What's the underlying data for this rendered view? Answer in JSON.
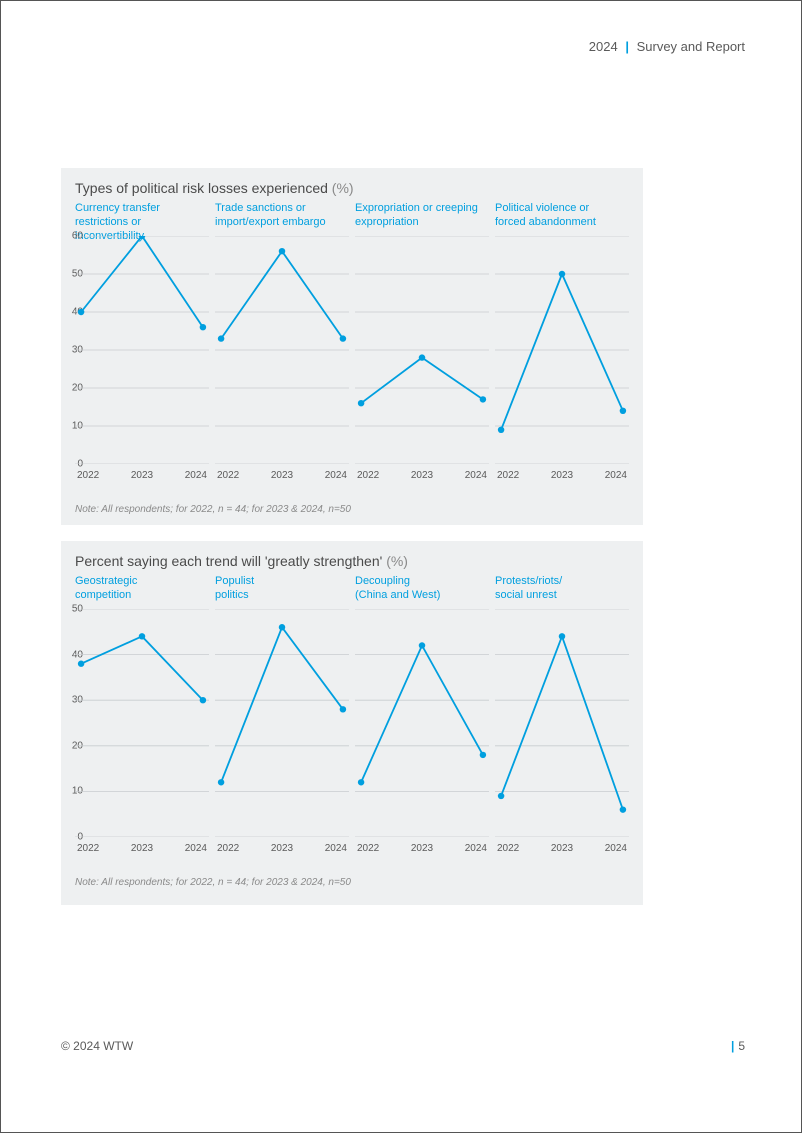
{
  "header": {
    "year": "2024",
    "divider": "|",
    "title": "Survey and Report"
  },
  "accent_color": "#009fdf",
  "grid_color": "#c8cccf",
  "panel_bg": "#eef0f1",
  "text_color": "#5a5a5a",
  "marker_radius": 3.2,
  "line_width": 1.8,
  "chart1": {
    "title_main": "Types of political risk losses experienced ",
    "title_suffix": "(%)",
    "note": "Note: All respondents; for 2022, n = 44; for 2023 & 2024, n=50",
    "categories": [
      "2022",
      "2023",
      "2024"
    ],
    "ylim": [
      0,
      60
    ],
    "ytick_step": 10,
    "panels": [
      {
        "label_l1": "Currency transfer",
        "label_l2": "restrictions or inconvertibility",
        "values": [
          40,
          60,
          36
        ]
      },
      {
        "label_l1": "Trade sanctions or",
        "label_l2": "import/export embargo",
        "values": [
          33,
          56,
          33
        ]
      },
      {
        "label_l1": "Expropriation or creeping",
        "label_l2": "expropriation",
        "values": [
          16,
          28,
          17
        ]
      },
      {
        "label_l1": "Political violence or",
        "label_l2": "forced abandonment",
        "values": [
          9,
          50,
          14
        ]
      }
    ]
  },
  "chart2": {
    "title_main": "Percent saying each trend will 'greatly strengthen' ",
    "title_suffix": "(%)",
    "note": "Note: All respondents; for 2022, n = 44; for 2023 & 2024, n=50",
    "categories": [
      "2022",
      "2023",
      "2024"
    ],
    "ylim": [
      0,
      50
    ],
    "ytick_step": 10,
    "panels": [
      {
        "label_l1": "Geostrategic",
        "label_l2": "competition",
        "values": [
          38,
          44,
          30
        ]
      },
      {
        "label_l1": "Populist",
        "label_l2": "politics",
        "values": [
          12,
          46,
          28
        ]
      },
      {
        "label_l1": "Decoupling",
        "label_l2": "(China and West)",
        "values": [
          12,
          42,
          18
        ]
      },
      {
        "label_l1": "Protests/riots/",
        "label_l2": "social unrest",
        "values": [
          9,
          44,
          6
        ]
      }
    ]
  },
  "footer": {
    "left": "© 2024 WTW",
    "right_bar": "|",
    "right_page": "5"
  }
}
